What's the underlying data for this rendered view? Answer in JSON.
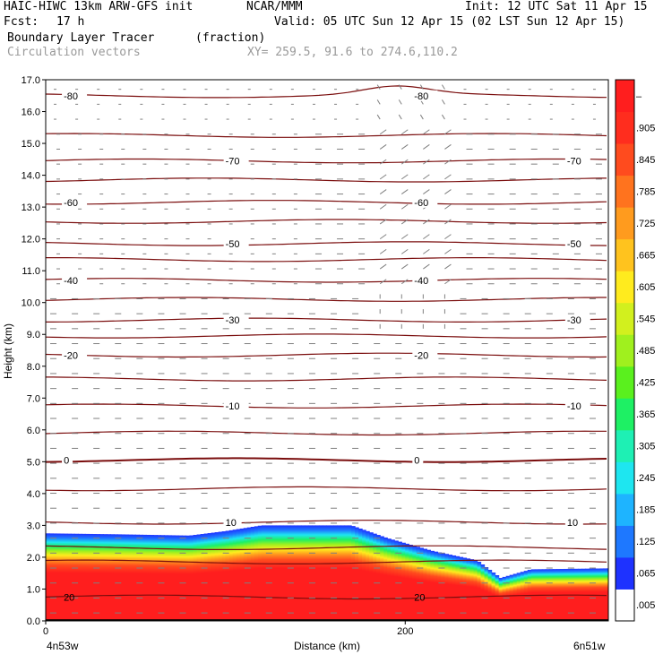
{
  "header": {
    "model": "HAIC-HIWC 13km ARW-GFS init",
    "org": "NCAR/MMM",
    "init": "Init: 12 UTC Sat 11 Apr 15",
    "fcst_label": "Fcst:",
    "fcst_value": "17 h",
    "valid": "Valid: 05 UTC Sun 12 Apr 15 (02 LST Sun 12 Apr 15)",
    "field": "Boundary Layer Tracer",
    "field_units": "(fraction)",
    "vectors": "Circulation vectors",
    "xy": "XY= 259.5, 91.6 to 274.6,110.2"
  },
  "chart_data": {
    "type": "heatmap",
    "ylabel": "Height (km)",
    "xlabel": "Distance (km)",
    "xlim": [
      0,
      313
    ],
    "ylim": [
      0,
      17
    ],
    "yticks": [
      "0.0",
      "1.0",
      "2.0",
      "3.0",
      "4.0",
      "5.0",
      "6.0",
      "7.0",
      "8.0",
      "9.0",
      "10.0",
      "11.0",
      "12.0",
      "13.0",
      "14.0",
      "15.0",
      "16.0",
      "17.0"
    ],
    "xticks": [
      {
        "value": 0,
        "label": "0"
      },
      {
        "value": 200,
        "label": "200"
      }
    ],
    "x_endpoints": {
      "left": "4n53w",
      "right": "6n51w"
    },
    "colorbar": {
      "labels": [
        ".005",
        ".065",
        ".125",
        ".185",
        ".245",
        ".305",
        ".365",
        ".425",
        ".485",
        ".545",
        ".605",
        ".665",
        ".725",
        ".785",
        ".845",
        ".905",
        "–"
      ],
      "colors": [
        "#ffffff",
        "#1e32ff",
        "#1e78ff",
        "#1eb4ff",
        "#1ee6f0",
        "#1ef0b4",
        "#1ef064",
        "#5af01e",
        "#a0f01e",
        "#d2f01e",
        "#ffeb1e",
        "#ffc31e",
        "#ff9b1e",
        "#ff731e",
        "#ff4b1e",
        "#ff2d1e",
        "#ff1e1e"
      ]
    },
    "tracer_top_km": [
      {
        "x": 0,
        "top": 2.75
      },
      {
        "x": 40,
        "top": 2.72
      },
      {
        "x": 80,
        "top": 2.68
      },
      {
        "x": 100,
        "top": 2.82
      },
      {
        "x": 120,
        "top": 3.0
      },
      {
        "x": 170,
        "top": 3.0
      },
      {
        "x": 190,
        "top": 2.6
      },
      {
        "x": 215,
        "top": 2.2
      },
      {
        "x": 240,
        "top": 1.9
      },
      {
        "x": 253,
        "top": 1.35
      },
      {
        "x": 270,
        "top": 1.62
      },
      {
        "x": 313,
        "top": 1.65
      }
    ],
    "temperature_contours": [
      {
        "label": "20",
        "y": 0.75
      },
      {
        "label": "10",
        "y": 3.1
      },
      {
        "label": "0",
        "y": 5.05
      },
      {
        "label": "-10",
        "y": 6.75
      },
      {
        "label": "-20",
        "y": 8.35
      },
      {
        "label": "-30",
        "y": 9.45
      },
      {
        "label": "-40",
        "y": 10.7
      },
      {
        "label": "-50",
        "y": 11.85
      },
      {
        "label": "-60",
        "y": 13.15
      },
      {
        "label": "-70",
        "y": 14.45
      },
      {
        "label": "-80",
        "y": 16.5
      }
    ],
    "contour_levels_km": [
      0.75,
      1.85,
      2.3,
      3.1,
      4.15,
      5.05,
      5.9,
      6.75,
      7.6,
      8.35,
      8.95,
      9.45,
      10.1,
      10.7,
      11.35,
      11.85,
      12.55,
      13.15,
      13.85,
      14.45,
      15.25,
      16.5
    ],
    "surface_km": 0.05
  }
}
